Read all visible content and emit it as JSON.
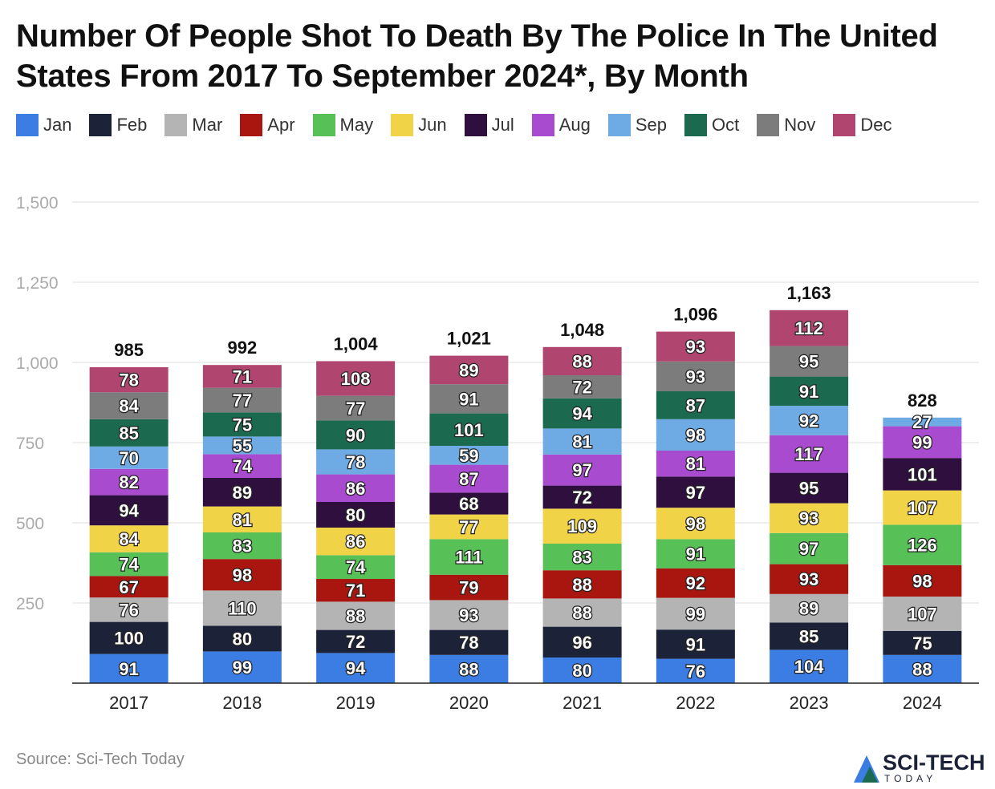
{
  "title": "Number Of People Shot To Death By The Police In The United States From 2017 To September 2024*, By Month",
  "source": "Source: Sci-Tech Today",
  "logo": {
    "line1": "SCI-TECH",
    "line2": "TODAY"
  },
  "chart_data": {
    "type": "bar",
    "stacked": true,
    "title": "Number Of People Shot To Death By The Police In The United States From 2017 To September 2024*, By Month",
    "categories": [
      "2017",
      "2018",
      "2019",
      "2020",
      "2021",
      "2022",
      "2023",
      "2024"
    ],
    "ylim": [
      0,
      1500
    ],
    "yticks": [
      250,
      500,
      750,
      1000,
      1250,
      1500
    ],
    "ytick_labels": [
      "250",
      "500",
      "750",
      "1,000",
      "1,250",
      "1,500"
    ],
    "grid": true,
    "legend_position": "top-left",
    "totals": [
      "985",
      "992",
      "1,004",
      "1,021",
      "1,048",
      "1,096",
      "1,163",
      "828"
    ],
    "series": [
      {
        "name": "Jan",
        "color": "#3b7de3",
        "values": [
          91,
          99,
          94,
          88,
          80,
          76,
          104,
          88
        ]
      },
      {
        "name": "Feb",
        "color": "#1c2339",
        "values": [
          100,
          80,
          72,
          78,
          96,
          91,
          85,
          75
        ]
      },
      {
        "name": "Mar",
        "color": "#b4b4b4",
        "values": [
          76,
          110,
          88,
          93,
          88,
          99,
          89,
          107
        ]
      },
      {
        "name": "Apr",
        "color": "#a8160f",
        "values": [
          67,
          98,
          71,
          79,
          88,
          92,
          93,
          98
        ]
      },
      {
        "name": "May",
        "color": "#57c057",
        "values": [
          74,
          83,
          74,
          111,
          83,
          91,
          97,
          126
        ]
      },
      {
        "name": "Jun",
        "color": "#f0d346",
        "values": [
          84,
          81,
          86,
          77,
          109,
          98,
          93,
          107
        ]
      },
      {
        "name": "Jul",
        "color": "#2e0f3d",
        "values": [
          94,
          89,
          80,
          68,
          72,
          97,
          95,
          101
        ]
      },
      {
        "name": "Aug",
        "color": "#a84bcf",
        "values": [
          82,
          74,
          86,
          87,
          97,
          81,
          117,
          99
        ]
      },
      {
        "name": "Sep",
        "color": "#6eaae4",
        "values": [
          70,
          55,
          78,
          59,
          81,
          98,
          92,
          27
        ]
      },
      {
        "name": "Oct",
        "color": "#1b6a4f",
        "values": [
          85,
          75,
          90,
          101,
          94,
          87,
          91,
          null
        ]
      },
      {
        "name": "Nov",
        "color": "#7c7c7c",
        "values": [
          84,
          77,
          77,
          91,
          72,
          93,
          95,
          null
        ]
      },
      {
        "name": "Dec",
        "color": "#b0466f",
        "values": [
          78,
          71,
          108,
          89,
          88,
          93,
          112,
          null
        ]
      }
    ]
  }
}
